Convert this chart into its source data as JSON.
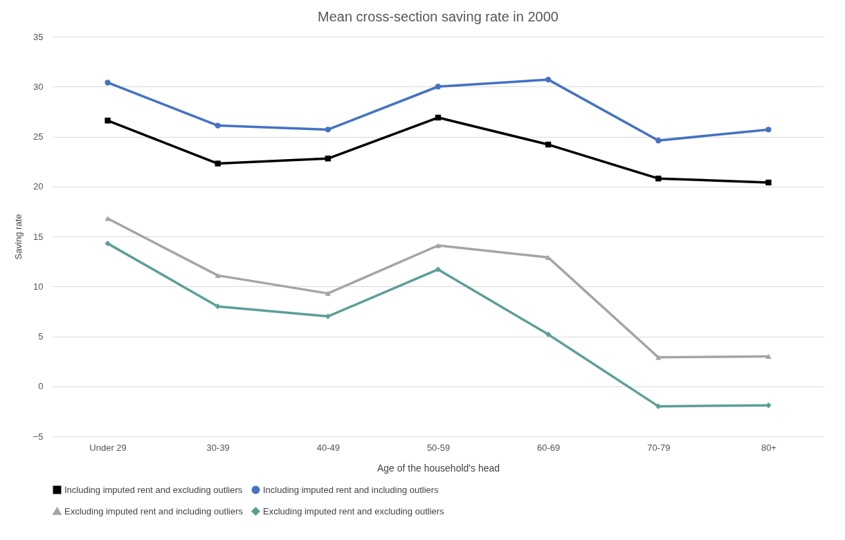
{
  "chart_data": {
    "type": "line",
    "title": "Mean cross-section saving rate in 2000",
    "xlabel": "Age of the household's head",
    "ylabel": "Saving rate",
    "categories": [
      "Under 29",
      "30-39",
      "40-49",
      "50-59",
      "60-69",
      "70-79",
      "80+"
    ],
    "series": [
      {
        "name": "Including imputed rent and excluding outliers",
        "color": "#000000",
        "marker": "square",
        "values": [
          26.6,
          22.3,
          22.8,
          26.9,
          24.2,
          20.8,
          20.4
        ]
      },
      {
        "name": "Including imputed rent and including outliers",
        "color": "#4472c4",
        "marker": "circle",
        "values": [
          30.4,
          26.1,
          25.7,
          30.0,
          30.7,
          24.6,
          25.7
        ]
      },
      {
        "name": "Excluding imputed rent and including outliers",
        "color": "#a5a5a5",
        "marker": "triangle",
        "values": [
          16.8,
          11.1,
          9.3,
          14.1,
          12.9,
          2.9,
          3.0
        ]
      },
      {
        "name": "Excluding imputed rent and excluding outliers",
        "color": "#5b9f98",
        "marker": "diamond",
        "values": [
          14.3,
          8.0,
          7.0,
          11.7,
          5.2,
          -2.0,
          -1.9
        ]
      }
    ],
    "ylim": [
      -5,
      35
    ],
    "yticks": [
      -5,
      0,
      5,
      10,
      15,
      20,
      25,
      30,
      35
    ],
    "grid": "y",
    "legend": "bottom",
    "line_style": "solid"
  }
}
